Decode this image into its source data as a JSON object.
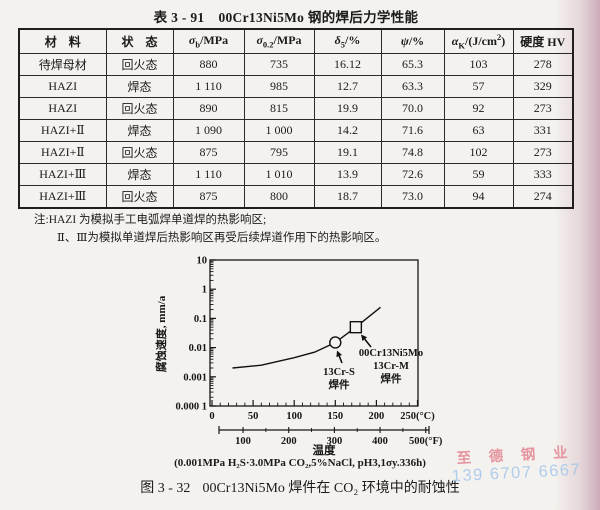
{
  "doc": {
    "title_label": "表 3 - 91",
    "title_text": "00Cr13Ni5Mo 钢的焊后力学性能"
  },
  "table": {
    "headers": [
      [
        {
          "t": "材　料"
        }
      ],
      [
        {
          "t": "状　态"
        }
      ],
      [
        {
          "t": "σ",
          "greek": true
        },
        {
          "t": "b",
          "sub": true
        },
        {
          "t": "/MPa"
        }
      ],
      [
        {
          "t": "σ",
          "greek": true
        },
        {
          "t": "0.2",
          "sub": true
        },
        {
          "t": "/MPa"
        }
      ],
      [
        {
          "t": "δ",
          "greek": true
        },
        {
          "t": "5",
          "sub": true
        },
        {
          "t": "/%"
        }
      ],
      [
        {
          "t": "ψ",
          "greek": true
        },
        {
          "t": "/%"
        }
      ],
      [
        {
          "t": "α",
          "greek": true
        },
        {
          "t": "K",
          "sub": true
        },
        {
          "t": "/(J/cm"
        },
        {
          "t": "2",
          "sup": true
        },
        {
          "t": ")"
        }
      ],
      [
        {
          "t": "硬度  HV"
        }
      ]
    ],
    "rows": [
      [
        "待焊母材",
        "回火态",
        "880",
        "735",
        "16.12",
        "65.3",
        "103",
        "278"
      ],
      [
        "HAZI",
        "焊态",
        "1 110",
        "985",
        "12.7",
        "63.3",
        "57",
        "329"
      ],
      [
        "HAZI",
        "回火态",
        "890",
        "815",
        "19.9",
        "70.0",
        "92",
        "273"
      ],
      [
        "HAZI+Ⅱ",
        "焊态",
        "1 090",
        "1 000",
        "14.2",
        "71.6",
        "63",
        "331"
      ],
      [
        "HAZI+Ⅱ",
        "回火态",
        "875",
        "795",
        "19.1",
        "74.8",
        "102",
        "273"
      ],
      [
        "HAZI+Ⅲ",
        "焊态",
        "1 110",
        "1 010",
        "13.9",
        "72.6",
        "59",
        "333"
      ],
      [
        "HAZI+Ⅲ",
        "回火态",
        "875",
        "800",
        "18.7",
        "73.0",
        "94",
        "274"
      ]
    ]
  },
  "notes": {
    "line1": "注:HAZI 为模拟手工电弧焊单道焊的热影响区;",
    "line2": "Ⅱ、Ⅲ为模拟单道焊后热影响区再受后续焊道作用下的热影响区。"
  },
  "chart_data": {
    "type": "line",
    "ylabel": "腐蚀速度, mm/a",
    "xlabel": "温度",
    "y_scale": "log",
    "ylim": [
      0.0001,
      10
    ],
    "y_ticks": {
      "values": [
        10,
        1,
        0.1,
        0.01,
        0.001,
        0.0001
      ],
      "labels": [
        "10",
        "1",
        "0.1",
        "0.01",
        "0.001",
        "0.000 1"
      ]
    },
    "x_ticks_celsius": {
      "values": [
        0,
        50,
        100,
        150,
        200,
        250
      ],
      "labels": [
        "0",
        "50",
        "100",
        "150",
        "200",
        "250(°C)"
      ]
    },
    "x_ticks_fahrenheit": {
      "values": [
        100,
        200,
        300,
        400,
        500
      ],
      "labels": [
        "100",
        "200",
        "300",
        "400",
        "500(°F)"
      ]
    },
    "series": [
      {
        "name": "corrosion-rate-curve",
        "points": [
          [
            25,
            0.002
          ],
          [
            60,
            0.0025
          ],
          [
            100,
            0.0045
          ],
          [
            125,
            0.007
          ],
          [
            150,
            0.015
          ],
          [
            175,
            0.05
          ],
          [
            205,
            0.24
          ]
        ]
      }
    ],
    "markers": [
      {
        "shape": "circle",
        "x_c": 150,
        "value": 0.015,
        "label_lines": [
          "13Cr-S",
          "焊件"
        ]
      },
      {
        "shape": "square",
        "x_c": 175,
        "value": 0.05,
        "label_lines": [
          "00Cr13Ni5Mo",
          "13Cr-M",
          "焊件"
        ]
      }
    ]
  },
  "figure": {
    "condition": "(0.001MPa H₂S·3.0MPa CO₂,5%NaCl, pH3,1σy.336h)",
    "caption_label": "图 3 - 32",
    "caption_text": "00Cr13Ni5Mo 焊件在 CO₂ 环境中的耐蚀性"
  },
  "watermark": {
    "company": "至 德 钢 业",
    "phone": "139 6707 6667",
    "company_color": "#e2808e",
    "phone_color": "#a3c6ec"
  }
}
